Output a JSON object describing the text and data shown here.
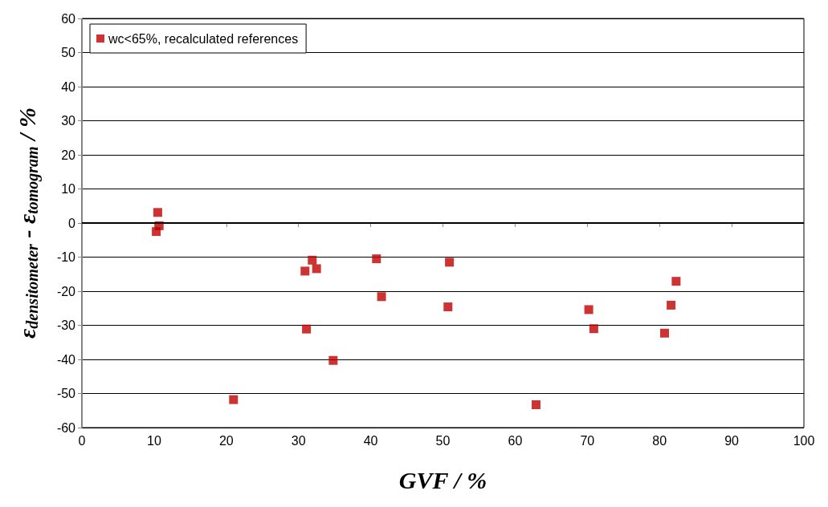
{
  "chart_data": {
    "type": "scatter",
    "xlabel": "GVF / %",
    "ylabel": "ε$_{densitometer}$ - ε$_{tomogram}$ / %",
    "xlim": [
      0,
      100
    ],
    "xticks": [
      0,
      10,
      20,
      30,
      40,
      50,
      60,
      70,
      80,
      90,
      100
    ],
    "ylim": [
      -60,
      60
    ],
    "yticks": [
      -60,
      -50,
      -40,
      -30,
      -20,
      -10,
      0,
      10,
      20,
      30,
      40,
      50,
      60
    ],
    "grid": "y",
    "legend": "top left",
    "marker": "square",
    "ref_lines": [
      {
        "axis": "y",
        "value": 0,
        "color": "#000000"
      }
    ],
    "series": [
      {
        "name": "wc<65%, recalculated references",
        "color": "#c00000",
        "x": [
          10.5,
          10.7,
          10.3,
          21.0,
          31.9,
          30.9,
          32.5,
          31.1,
          34.8,
          40.8,
          41.5,
          50.9,
          50.7,
          62.9,
          70.2,
          70.9,
          80.7,
          81.6,
          82.3
        ],
        "values": [
          3.1,
          -0.8,
          -2.5,
          -51.8,
          -10.9,
          -14.1,
          -13.4,
          -31.1,
          -40.3,
          -10.5,
          -21.6,
          -11.5,
          -24.6,
          -53.3,
          -25.4,
          -31.0,
          -32.3,
          -24.1,
          -17.1
        ]
      }
    ]
  }
}
